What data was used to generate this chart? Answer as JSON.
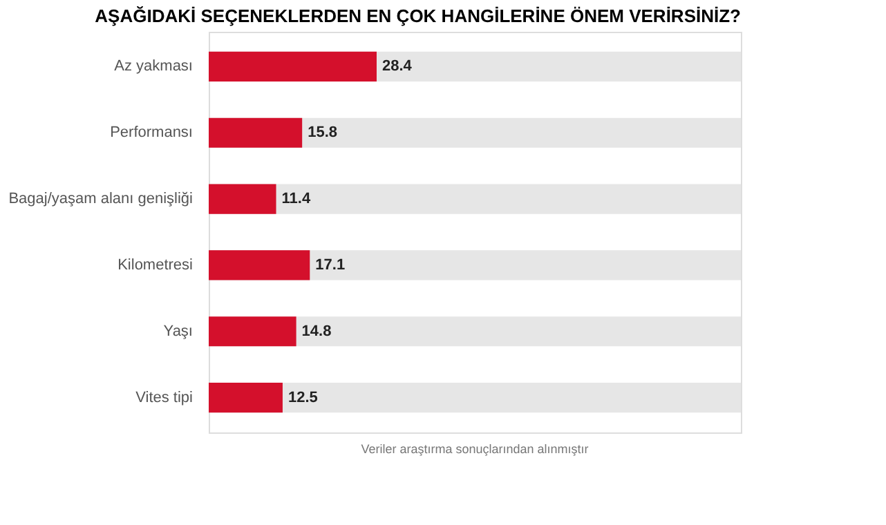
{
  "chart_data": {
    "type": "bar",
    "orientation": "horizontal",
    "title": "AŞAĞIDAKİ SEÇENEKLERDEN EN ÇOK HANGİLERİNE ÖNEM VERİRSİNİZ?",
    "categories": [
      "Az yakması",
      "Performansı",
      "Bagaj/yaşam alanı genişliği",
      "Kilometresi",
      "Yaşı",
      "Vites tipi"
    ],
    "values": [
      28.4,
      15.8,
      11.4,
      17.1,
      14.8,
      12.5
    ],
    "color": "#d4102c",
    "xlim": [
      0,
      90
    ],
    "data_labels": true,
    "annotations": [
      "Veriler araştırma sonuçlarından alınmıştır"
    ]
  }
}
